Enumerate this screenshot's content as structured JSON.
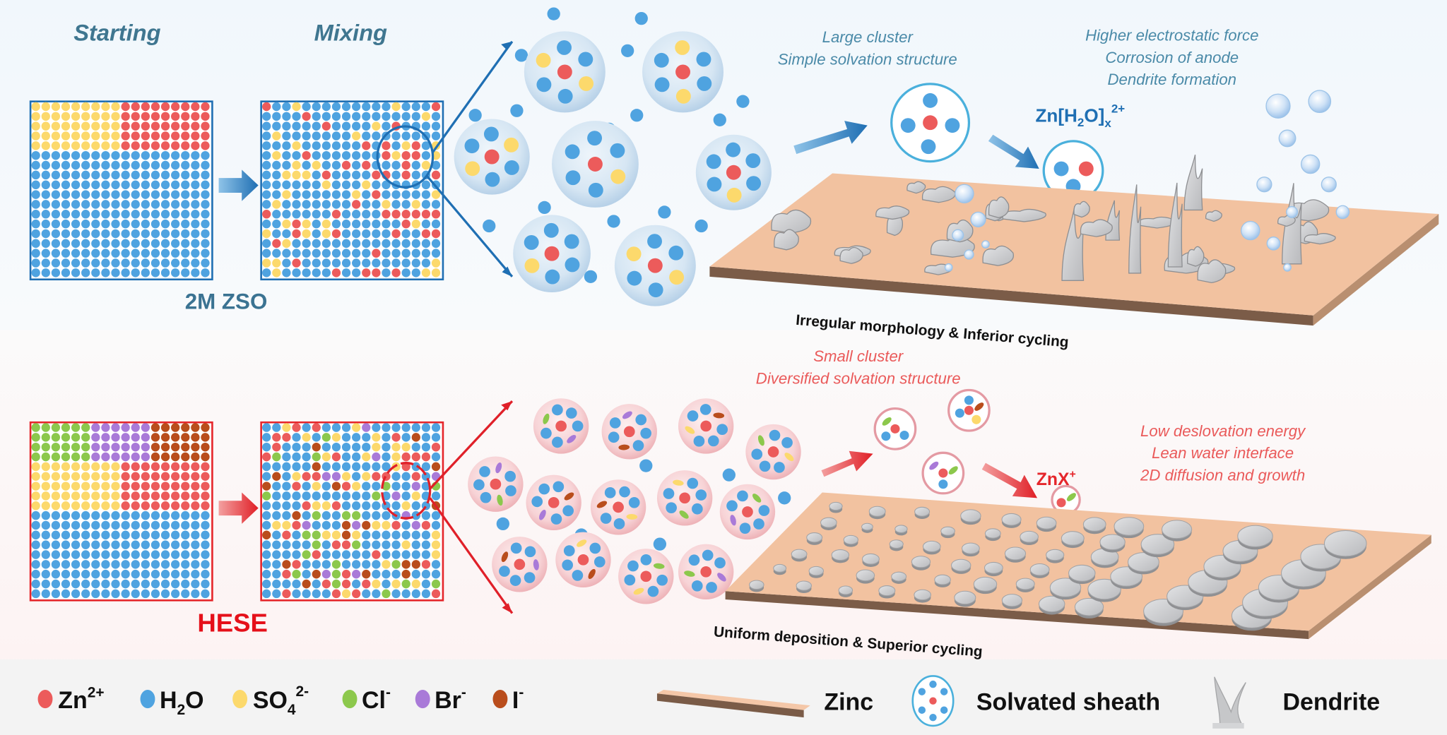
{
  "column_titles": [
    "Starting",
    "Mixing"
  ],
  "colors": {
    "zn": "#ec5b5b",
    "h2o": "#4fa3e0",
    "so4": "#fcd96c",
    "cl": "#8cc84c",
    "br": "#a97ad8",
    "i": "#b94d1c",
    "top_accent": "#1f6fb3",
    "bottom_accent": "#e5262b",
    "zinc": "#f2c2a0",
    "deposit": "#c8c9cb"
  },
  "top": {
    "label": "2M ZSO",
    "cluster_text": [
      "Large cluster",
      "Simple solvation structure"
    ],
    "effects": [
      "Higher electrostatic force",
      "Corrosion of anode",
      "Dendrite formation"
    ],
    "species": {
      "a": "Zn[H",
      "b": "2",
      "c": "O]",
      "d": "x",
      "e": "2+"
    },
    "caption": "Irregular morphology & Inferior cycling"
  },
  "bottom": {
    "label": "HESE",
    "cluster_text": [
      "Small cluster",
      "Diversified solvation structure"
    ],
    "effects": [
      "Low deslovation energy",
      "Lean water interface",
      "2D diffusion and growth"
    ],
    "species": {
      "a": "ZnX",
      "e": "+"
    },
    "caption": "Uniform deposition & Superior cycling"
  },
  "legend": {
    "zn": {
      "a": "Zn",
      "sup": "2+"
    },
    "h2o": {
      "a": "H",
      "sub": "2",
      "b": "O"
    },
    "so4": {
      "a": "SO",
      "sub": "4",
      "sup": "2-"
    },
    "cl": {
      "a": "Cl",
      "sup": "-"
    },
    "br": {
      "a": "Br",
      "sup": "-"
    },
    "i": {
      "a": "I",
      "sup": "-"
    },
    "zinc": "Zinc",
    "sheath": "Solvated sheath",
    "dendrite": "Dendrite"
  }
}
